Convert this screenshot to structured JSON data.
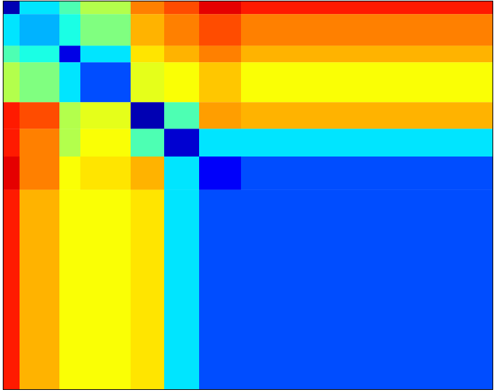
{
  "chart_data": {
    "type": "heatmap",
    "colormap": "jet",
    "zlim": [
      0,
      1
    ],
    "xlim": [
      0,
      700
    ],
    "ylim": [
      0,
      700
    ],
    "edges": [
      0,
      23,
      80,
      110,
      182,
      230,
      280,
      340,
      700
    ],
    "values": [
      [
        0.05,
        0.35,
        0.45,
        0.55,
        0.75,
        0.8,
        0.9,
        0.85
      ],
      [
        0.35,
        0.3,
        0.4,
        0.5,
        0.7,
        0.75,
        0.8,
        0.75
      ],
      [
        0.45,
        0.4,
        0.1,
        0.35,
        0.65,
        0.7,
        0.75,
        0.7
      ],
      [
        0.55,
        0.5,
        0.35,
        0.2,
        0.6,
        0.62,
        0.68,
        0.62
      ],
      [
        0.85,
        0.8,
        0.55,
        0.6,
        0.05,
        0.45,
        0.72,
        0.7
      ],
      [
        0.85,
        0.75,
        0.55,
        0.62,
        0.45,
        0.08,
        0.35,
        0.35
      ],
      [
        0.9,
        0.75,
        0.62,
        0.65,
        0.7,
        0.35,
        0.12,
        0.2
      ],
      [
        0.85,
        0.7,
        0.62,
        0.62,
        0.65,
        0.35,
        0.2,
        0.2
      ]
    ]
  }
}
